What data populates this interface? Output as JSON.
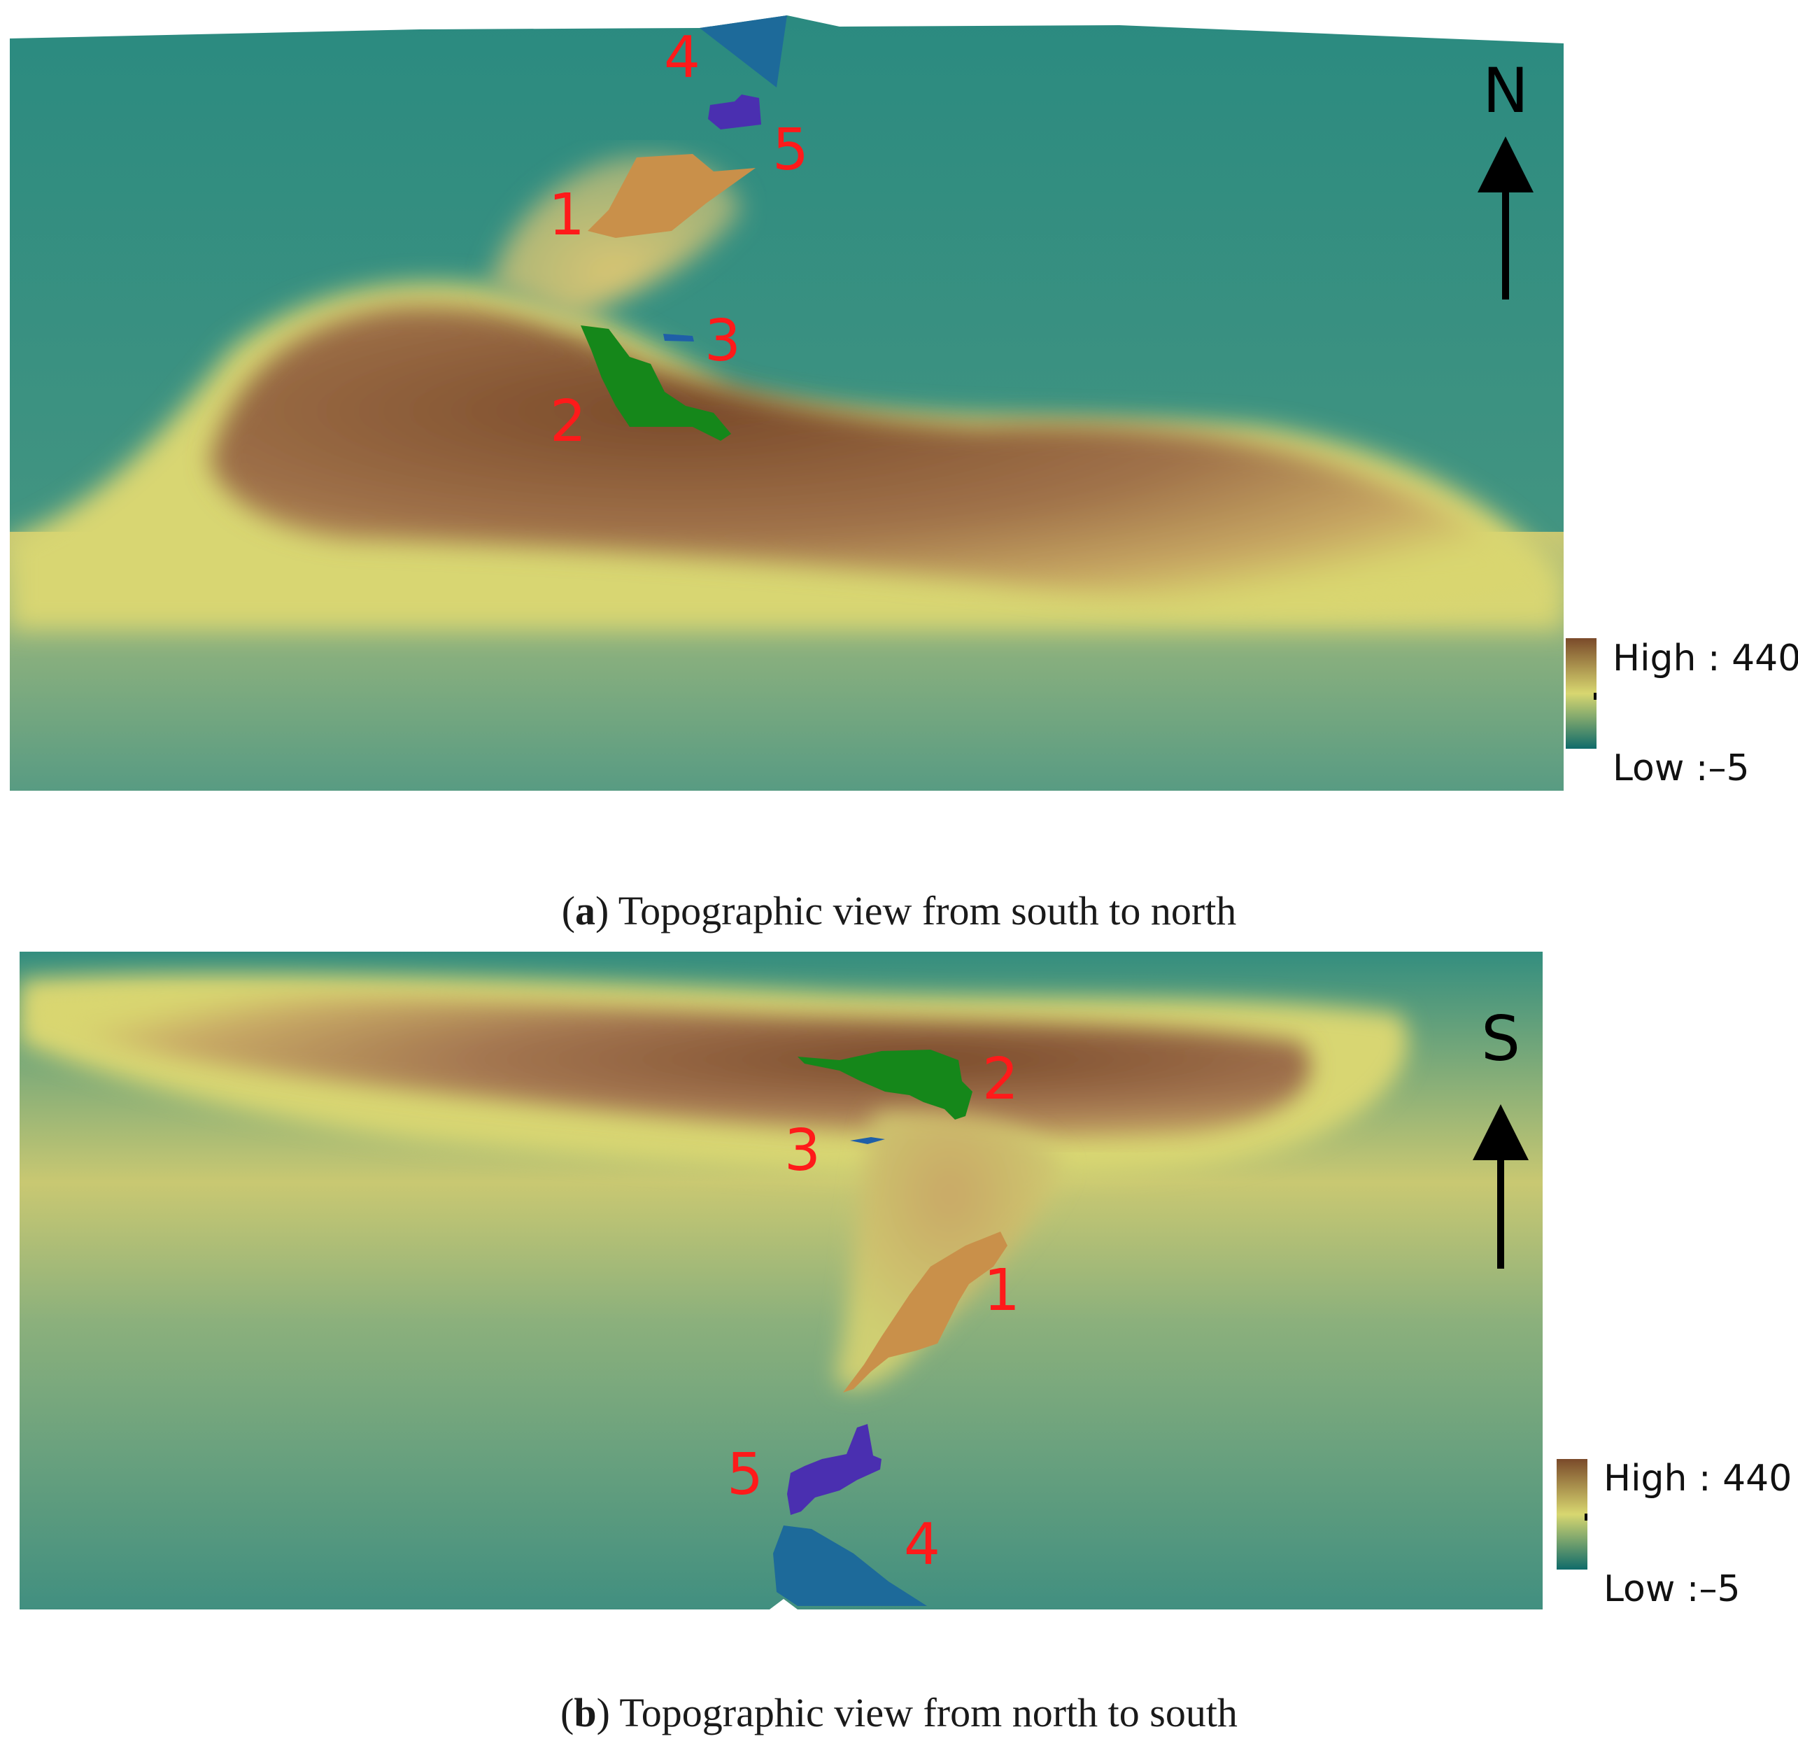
{
  "panels": [
    {
      "id": "a",
      "letter": "a",
      "caption": "Topographic view from south to north",
      "arrow_label": "N",
      "legend": {
        "high": "High : 440",
        "low": "Low :–5"
      },
      "zone_labels": [
        "1",
        "2",
        "3",
        "4",
        "5"
      ]
    },
    {
      "id": "b",
      "letter": "b",
      "caption": "Topographic view from north to south",
      "arrow_label": "S",
      "legend": {
        "high": "High : 440",
        "low": "Low :–5"
      },
      "zone_labels": [
        "1",
        "2",
        "3",
        "4",
        "5"
      ]
    }
  ],
  "colors": {
    "high": "#7a4a2a",
    "mid": "#d8d770",
    "low": "#0f6b6a",
    "label_red": "#ff1a1a",
    "zone1": "#c9904a",
    "zone2": "#15871a",
    "zone3": "#1f5fa8",
    "zone4": "#1d6a9a",
    "zone5": "#4a2fb0"
  }
}
